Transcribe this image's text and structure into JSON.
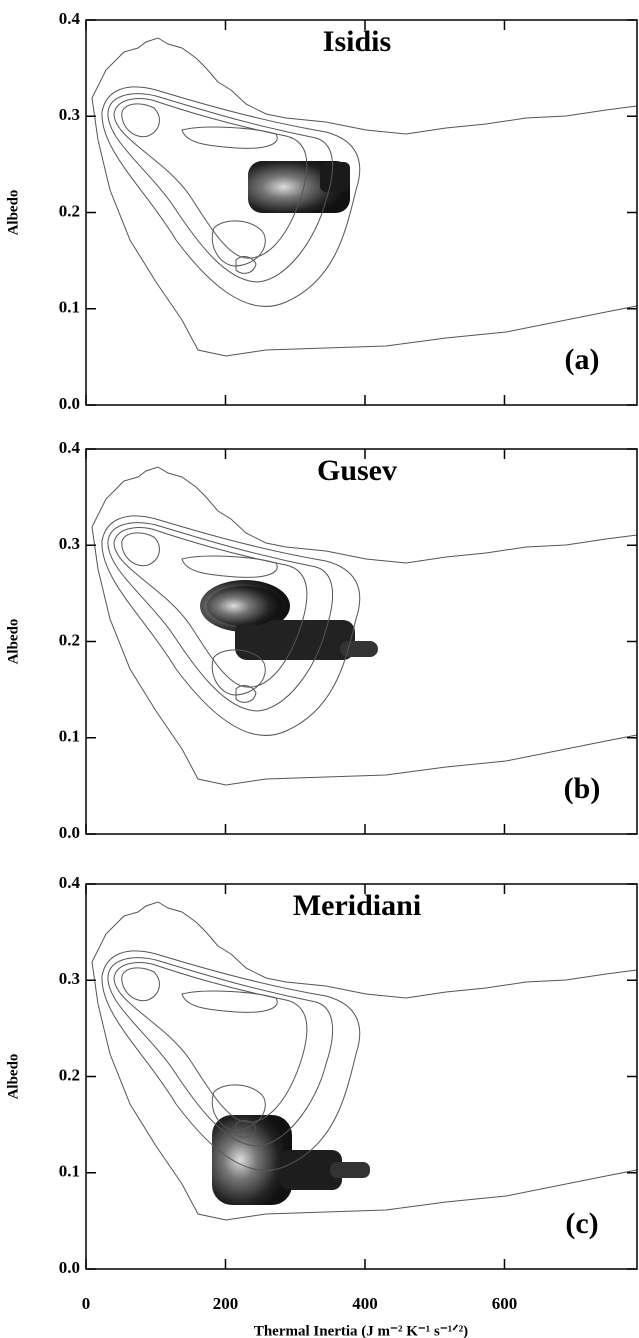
{
  "chart_data": [
    {
      "type": "contour",
      "title": "Isidis",
      "panel_label": "(a)",
      "ylabel": "Albedo",
      "xlim": [
        0,
        790
      ],
      "xticks": [
        0,
        200,
        400,
        600
      ],
      "ylim": [
        0,
        0.4
      ],
      "yticks": [
        {
          "value": 0,
          "label": "0.0"
        },
        0.1,
        0.2,
        0.3,
        0.4
      ]
    },
    {
      "type": "contour",
      "title": "Gusev",
      "panel_label": "(b)",
      "ylabel": "Albedo",
      "xlim": [
        0,
        790
      ],
      "xticks": [
        0,
        200,
        400,
        600
      ],
      "ylim": [
        0,
        0.4
      ],
      "yticks": [
        {
          "value": 0,
          "label": "0.0"
        },
        0.1,
        0.2,
        0.3,
        0.4
      ]
    },
    {
      "type": "contour",
      "title": "Meridiani",
      "panel_label": "(c)",
      "ylabel": "Albedo",
      "xlabel": "Thermal Inertia (J m⁻² K⁻¹ s⁻¹ᐟ²)",
      "xlim": [
        0,
        790
      ],
      "xticks": [
        0,
        200,
        400,
        600
      ],
      "ylim": [
        0,
        0.4
      ],
      "yticks": [
        {
          "value": 0,
          "label": "0.0"
        },
        0.1,
        0.2,
        0.3,
        0.4
      ]
    }
  ]
}
